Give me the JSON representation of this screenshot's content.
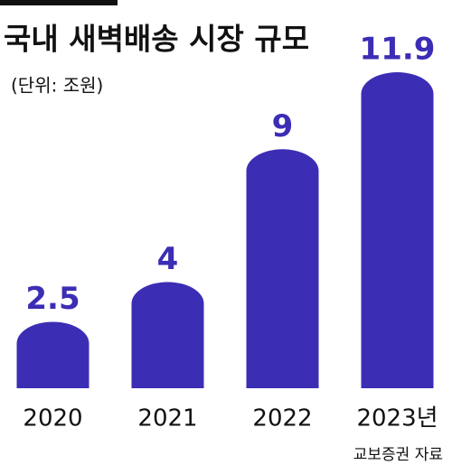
{
  "chart_data": {
    "type": "bar",
    "title": "국내 새벽배송 시장 규모",
    "subtitle": "(단위: 조원)",
    "categories": [
      "2020",
      "2021",
      "2022",
      "2023년"
    ],
    "values": [
      2.5,
      4,
      9,
      11.9
    ],
    "color": "#3c2db5",
    "source": "교보증권 자료"
  }
}
